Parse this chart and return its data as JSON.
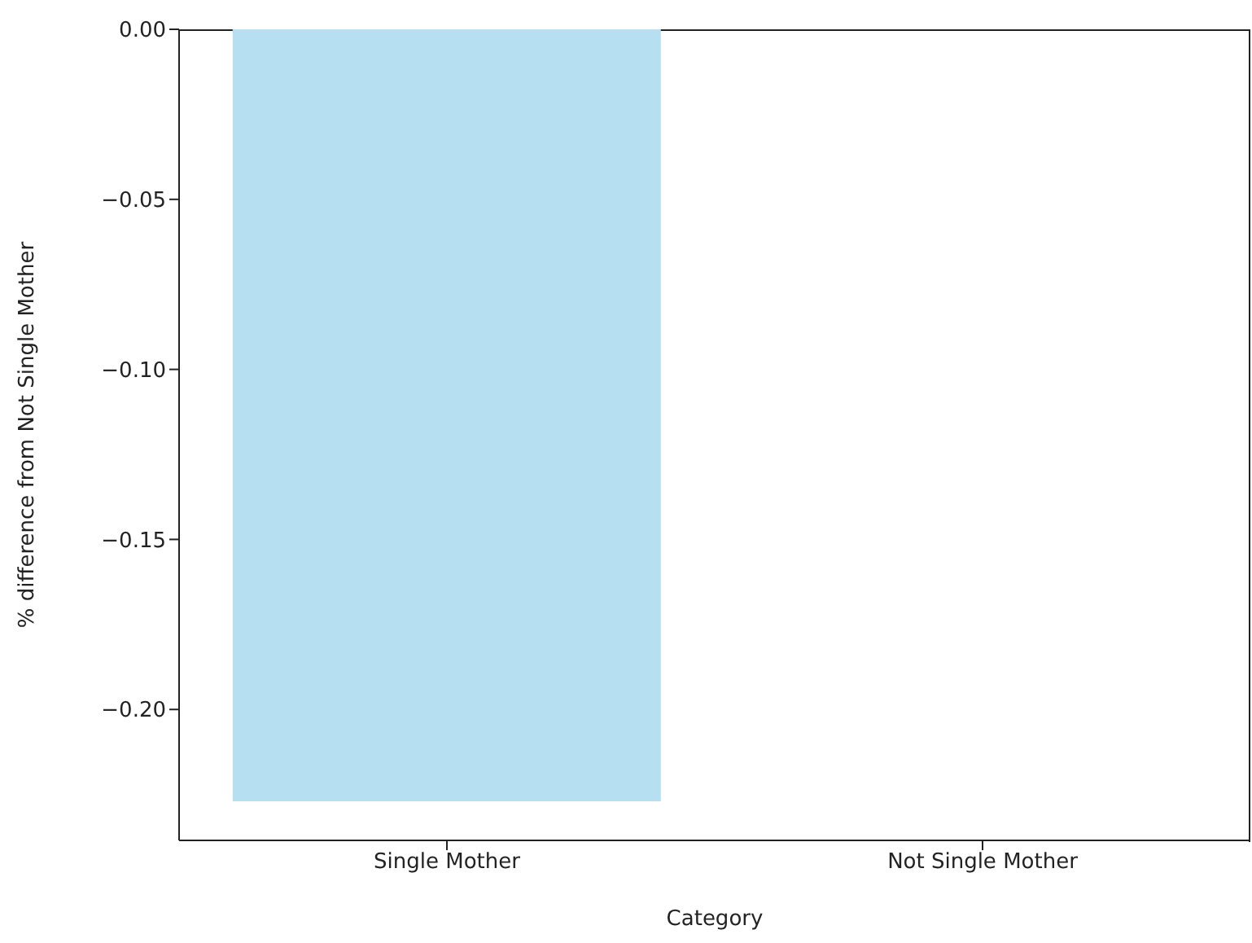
{
  "chart_data": {
    "type": "bar",
    "xlabel": "Category",
    "ylabel": "% difference from Not Single Mother",
    "categories": [
      "Single Mother",
      "Not Single Mother"
    ],
    "values": [
      -0.227,
      0
    ],
    "color": "#b7dff2",
    "ylim": [
      -0.2385,
      0
    ],
    "yticks": [
      {
        "value": 0,
        "label": "0.00"
      },
      {
        "value": -0.05,
        "label": "−0.05"
      },
      {
        "value": -0.1,
        "label": "−0.10"
      },
      {
        "value": -0.15,
        "label": "−0.15"
      },
      {
        "value": -0.2,
        "label": "−0.20"
      }
    ],
    "grid": false
  }
}
